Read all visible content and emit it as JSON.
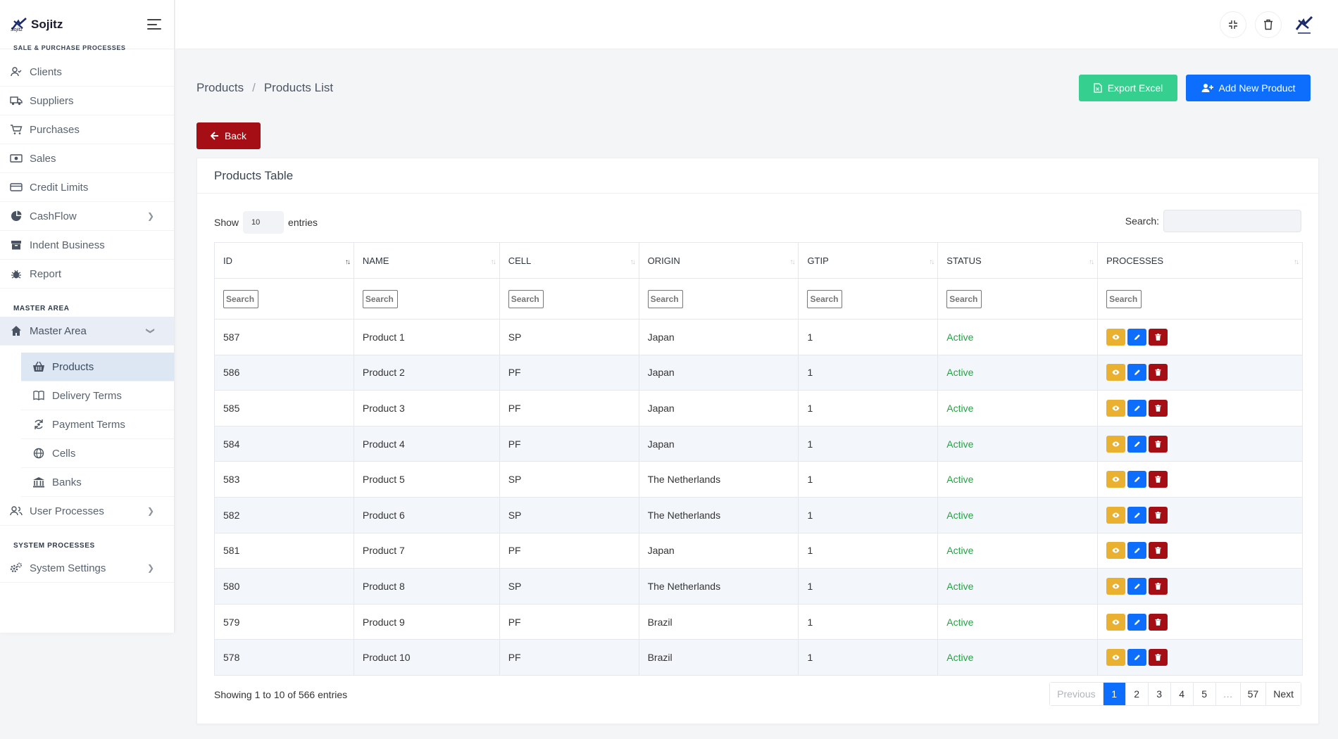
{
  "brand": {
    "name": "Sojitz",
    "sub": "Sojitz"
  },
  "sidebar": {
    "cut_heading": "SALE & PURCHASE PROCESSES",
    "items": [
      {
        "label": "Clients",
        "icon": "user-check-icon"
      },
      {
        "label": "Suppliers",
        "icon": "truck-icon"
      },
      {
        "label": "Purchases",
        "icon": "cart-icon"
      },
      {
        "label": "Sales",
        "icon": "money-icon"
      },
      {
        "label": "Credit Limits",
        "icon": "credit-card-icon"
      },
      {
        "label": "CashFlow",
        "icon": "pie-chart-icon"
      },
      {
        "label": "Indent Business",
        "icon": "archive-icon"
      },
      {
        "label": "Report",
        "icon": "bug-icon"
      }
    ],
    "master_heading": "MASTER AREA",
    "master_item": "Master Area",
    "sub_items": [
      {
        "label": "Products",
        "icon": "basket-icon"
      },
      {
        "label": "Delivery Terms",
        "icon": "book-icon"
      },
      {
        "label": "Payment Terms",
        "icon": "cycle-icon"
      },
      {
        "label": "Cells",
        "icon": "globe-icon"
      },
      {
        "label": "Banks",
        "icon": "bank-icon"
      }
    ],
    "user_processes": "User Processes",
    "system_heading": "SYSTEM PROCESSES",
    "system_settings": "System Settings"
  },
  "header": {
    "breadcrumb": [
      "Products",
      "Products List"
    ],
    "export_label": "Export Excel",
    "add_label": "Add New Product",
    "back_label": "Back"
  },
  "card": {
    "title": "Products Table",
    "show_label": "Show",
    "entries_value": "10",
    "entries_label": "entries",
    "search_label": "Search:"
  },
  "table": {
    "columns": [
      "ID",
      "NAME",
      "CELL",
      "ORIGIN",
      "GTIP",
      "STATUS",
      "PROCESSES"
    ],
    "filter_placeholder": "Search",
    "rows": [
      {
        "id": "587",
        "name": "Product 1",
        "cell": "SP",
        "origin": "Japan",
        "gtip": "1",
        "status": "Active"
      },
      {
        "id": "586",
        "name": "Product 2",
        "cell": "PF",
        "origin": "Japan",
        "gtip": "1",
        "status": "Active"
      },
      {
        "id": "585",
        "name": "Product 3",
        "cell": "PF",
        "origin": "Japan",
        "gtip": "1",
        "status": "Active"
      },
      {
        "id": "584",
        "name": "Product 4",
        "cell": "PF",
        "origin": "Japan",
        "gtip": "1",
        "status": "Active"
      },
      {
        "id": "583",
        "name": "Product 5",
        "cell": "SP",
        "origin": "The Netherlands",
        "gtip": "1",
        "status": "Active"
      },
      {
        "id": "582",
        "name": "Product 6",
        "cell": "SP",
        "origin": "The Netherlands",
        "gtip": "1",
        "status": "Active"
      },
      {
        "id": "581",
        "name": "Product 7",
        "cell": "PF",
        "origin": "Japan",
        "gtip": "1",
        "status": "Active"
      },
      {
        "id": "580",
        "name": "Product 8",
        "cell": "SP",
        "origin": "The Netherlands",
        "gtip": "1",
        "status": "Active"
      },
      {
        "id": "579",
        "name": "Product 9",
        "cell": "PF",
        "origin": "Brazil",
        "gtip": "1",
        "status": "Active"
      },
      {
        "id": "578",
        "name": "Product 10",
        "cell": "PF",
        "origin": "Brazil",
        "gtip": "1",
        "status": "Active"
      }
    ]
  },
  "footer": {
    "info": "Showing 1 to 10 of 566 entries",
    "pages": [
      "Previous",
      "1",
      "2",
      "3",
      "4",
      "5",
      "…",
      "57",
      "Next"
    ],
    "current_page": "1"
  },
  "colors": {
    "primary": "#0d6efd",
    "success": "#35cf8f",
    "danger": "#a50e14",
    "warning": "#e9b12f",
    "active_status": "#25a244"
  }
}
